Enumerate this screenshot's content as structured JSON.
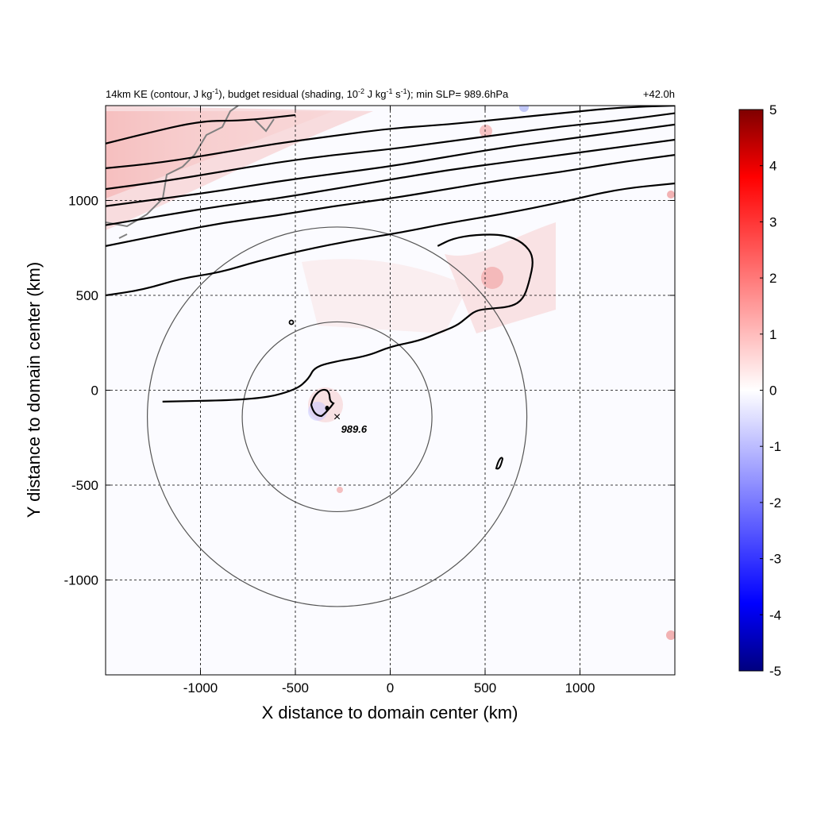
{
  "chart_data": {
    "type": "heatmap",
    "title_left_parts": {
      "p1": "14km KE (contour, J kg",
      "sup1": "-1",
      "p2": "), budget residual (shading, 10",
      "sup2": "-2",
      "p3": " J kg",
      "sup3": "-1",
      "p4": " s",
      "sup4": "-1",
      "p5": "); min SLP= 989.6hPa"
    },
    "title_right": "+42.0h",
    "xlabel": "X distance to domain center (km)",
    "ylabel": "Y distance to domain center (km)",
    "xlim": [
      -1500,
      1500
    ],
    "ylim": [
      -1500,
      1500
    ],
    "x_ticks": [
      -1000,
      -500,
      0,
      500,
      1000
    ],
    "x_tick_labels": [
      "-1000",
      "-500",
      "0",
      "500",
      "1000"
    ],
    "y_ticks": [
      -1000,
      -500,
      0,
      500,
      1000
    ],
    "y_tick_labels": [
      "-1000",
      "-500",
      "0",
      "500",
      "1000"
    ],
    "grid": true,
    "colorbar": {
      "min": -5,
      "max": 5,
      "ticks": [
        5,
        4,
        3,
        2,
        1,
        0,
        -1,
        -2,
        -3,
        -4,
        -5
      ],
      "tick_labels": [
        "5",
        "4",
        "3",
        "2",
        "1",
        "0",
        "-1",
        "-2",
        "-3",
        "-4",
        "-5"
      ],
      "colors": [
        "#00007f",
        "#0000ff",
        "#ffffff",
        "#ff0000",
        "#7f0000"
      ]
    },
    "storm_center": {
      "x": -280,
      "y": -140,
      "label": "989.6"
    },
    "range_circles_radius_km": [
      500,
      1000
    ],
    "ke_contours": [
      {
        "name": "jet-contour-1",
        "points": [
          [
            -1500,
            1300
          ],
          [
            -1300,
            1350
          ],
          [
            -1000,
            1420
          ],
          [
            -780,
            1420
          ],
          [
            -500,
            1450
          ]
        ]
      },
      {
        "name": "jet-contour-2",
        "points": [
          [
            -1500,
            1170
          ],
          [
            -1200,
            1200
          ],
          [
            -900,
            1250
          ],
          [
            -600,
            1300
          ],
          [
            -300,
            1340
          ],
          [
            0,
            1380
          ],
          [
            300,
            1400
          ],
          [
            600,
            1430
          ],
          [
            900,
            1460
          ],
          [
            1200,
            1490
          ],
          [
            1500,
            1500
          ]
        ]
      },
      {
        "name": "jet-contour-3",
        "points": [
          [
            -1500,
            1060
          ],
          [
            -1200,
            1100
          ],
          [
            -900,
            1150
          ],
          [
            -600,
            1200
          ],
          [
            -300,
            1240
          ],
          [
            0,
            1270
          ],
          [
            300,
            1310
          ],
          [
            600,
            1350
          ],
          [
            900,
            1390
          ],
          [
            1200,
            1420
          ],
          [
            1500,
            1460
          ]
        ]
      },
      {
        "name": "jet-contour-4",
        "points": [
          [
            -1500,
            970
          ],
          [
            -1200,
            1010
          ],
          [
            -900,
            1050
          ],
          [
            -600,
            1100
          ],
          [
            -300,
            1140
          ],
          [
            0,
            1180
          ],
          [
            300,
            1230
          ],
          [
            600,
            1280
          ],
          [
            900,
            1320
          ],
          [
            1200,
            1360
          ],
          [
            1500,
            1400
          ]
        ]
      },
      {
        "name": "jet-contour-5",
        "points": [
          [
            -1500,
            870
          ],
          [
            -1200,
            920
          ],
          [
            -900,
            970
          ],
          [
            -600,
            1010
          ],
          [
            -300,
            1060
          ],
          [
            0,
            1110
          ],
          [
            300,
            1160
          ],
          [
            600,
            1200
          ],
          [
            900,
            1240
          ],
          [
            1200,
            1280
          ],
          [
            1500,
            1320
          ]
        ]
      },
      {
        "name": "jet-contour-6",
        "points": [
          [
            -1500,
            760
          ],
          [
            -1200,
            820
          ],
          [
            -900,
            880
          ],
          [
            -600,
            920
          ],
          [
            -300,
            970
          ],
          [
            0,
            1010
          ],
          [
            300,
            1060
          ],
          [
            600,
            1110
          ],
          [
            900,
            1150
          ],
          [
            1200,
            1200
          ],
          [
            1500,
            1240
          ]
        ]
      },
      {
        "name": "jet-contour-7",
        "points": [
          [
            -1500,
            500
          ],
          [
            -1300,
            530
          ],
          [
            -1100,
            590
          ],
          [
            -900,
            620
          ],
          [
            -700,
            680
          ],
          [
            -450,
            740
          ],
          [
            -200,
            790
          ],
          [
            50,
            830
          ],
          [
            300,
            880
          ],
          [
            600,
            930
          ],
          [
            900,
            990
          ],
          [
            1200,
            1060
          ],
          [
            1500,
            1090
          ]
        ]
      },
      {
        "name": "trough-contour",
        "points": [
          [
            -1200,
            -60
          ],
          [
            -700,
            -50
          ],
          [
            -500,
            0
          ],
          [
            -430,
            60
          ],
          [
            -400,
            120
          ],
          [
            -300,
            150
          ],
          [
            -120,
            180
          ],
          [
            0,
            230
          ],
          [
            150,
            260
          ],
          [
            250,
            300
          ],
          [
            350,
            340
          ],
          [
            400,
            380
          ],
          [
            450,
            420
          ],
          [
            520,
            430
          ],
          [
            640,
            440
          ],
          [
            700,
            480
          ],
          [
            730,
            560
          ],
          [
            760,
            700
          ],
          [
            700,
            780
          ],
          [
            600,
            820
          ],
          [
            450,
            820
          ],
          [
            330,
            800
          ],
          [
            250,
            760
          ]
        ]
      }
    ]
  }
}
